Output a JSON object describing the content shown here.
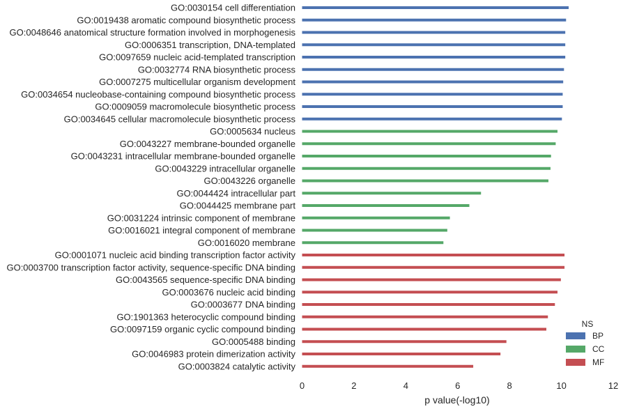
{
  "chart_data": {
    "type": "bar",
    "orientation": "horizontal",
    "xlabel": "p value(-log10)",
    "xlim": [
      0,
      12
    ],
    "xticks": [
      0,
      2,
      4,
      6,
      8,
      10,
      12
    ],
    "grid": false,
    "legend": {
      "title": "NS",
      "position": "bottom-right",
      "entries": [
        {
          "label": "BP",
          "color": "#4c72b0"
        },
        {
          "label": "CC",
          "color": "#55a868"
        },
        {
          "label": "MF",
          "color": "#c44e52"
        }
      ]
    },
    "bars": [
      {
        "label": "GO:0030154 cell differentiation",
        "value": 10.28,
        "group": "BP"
      },
      {
        "label": "GO:0019438 aromatic compound biosynthetic process",
        "value": 10.18,
        "group": "BP"
      },
      {
        "label": "GO:0048646 anatomical structure formation involved in morphogenesis",
        "value": 10.15,
        "group": "BP"
      },
      {
        "label": "GO:0006351 transcription, DNA-templated",
        "value": 10.15,
        "group": "BP"
      },
      {
        "label": "GO:0097659 nucleic acid-templated transcription",
        "value": 10.15,
        "group": "BP"
      },
      {
        "label": "GO:0032774 RNA biosynthetic process",
        "value": 10.1,
        "group": "BP"
      },
      {
        "label": "GO:0007275 multicellular organism development",
        "value": 10.07,
        "group": "BP"
      },
      {
        "label": "GO:0034654 nucleobase-containing compound biosynthetic process",
        "value": 10.05,
        "group": "BP"
      },
      {
        "label": "GO:0009059 macromolecule biosynthetic process",
        "value": 10.05,
        "group": "BP"
      },
      {
        "label": "GO:0034645 cellular macromolecule biosynthetic process",
        "value": 10.02,
        "group": "BP"
      },
      {
        "label": "GO:0005634 nucleus",
        "value": 9.85,
        "group": "CC"
      },
      {
        "label": "GO:0043227 membrane-bounded organelle",
        "value": 9.78,
        "group": "CC"
      },
      {
        "label": "GO:0043231 intracellular membrane-bounded organelle",
        "value": 9.6,
        "group": "CC"
      },
      {
        "label": "GO:0043229 intracellular organelle",
        "value": 9.58,
        "group": "CC"
      },
      {
        "label": "GO:0043226 organelle",
        "value": 9.5,
        "group": "CC"
      },
      {
        "label": "GO:0044424 intracellular part",
        "value": 6.9,
        "group": "CC"
      },
      {
        "label": "GO:0044425 membrane part",
        "value": 6.45,
        "group": "CC"
      },
      {
        "label": "GO:0031224 intrinsic component of membrane",
        "value": 5.7,
        "group": "CC"
      },
      {
        "label": "GO:0016021 integral component of membrane",
        "value": 5.6,
        "group": "CC"
      },
      {
        "label": "GO:0016020 membrane",
        "value": 5.45,
        "group": "CC"
      },
      {
        "label": "GO:0001071 nucleic acid binding transcription factor activity",
        "value": 10.12,
        "group": "MF"
      },
      {
        "label": "GO:0003700 transcription factor activity, sequence-specific DNA binding",
        "value": 10.12,
        "group": "MF"
      },
      {
        "label": "GO:0043565 sequence-specific DNA binding",
        "value": 9.98,
        "group": "MF"
      },
      {
        "label": "GO:0003676 nucleic acid binding",
        "value": 9.85,
        "group": "MF"
      },
      {
        "label": "GO:0003677 DNA binding",
        "value": 9.75,
        "group": "MF"
      },
      {
        "label": "GO:1901363 heterocyclic compound binding",
        "value": 9.48,
        "group": "MF"
      },
      {
        "label": "GO:0097159 organic cyclic compound binding",
        "value": 9.42,
        "group": "MF"
      },
      {
        "label": "GO:0005488 binding",
        "value": 7.88,
        "group": "MF"
      },
      {
        "label": "GO:0046983 protein dimerization activity",
        "value": 7.65,
        "group": "MF"
      },
      {
        "label": "GO:0003824 catalytic activity",
        "value": 6.6,
        "group": "MF"
      }
    ]
  }
}
